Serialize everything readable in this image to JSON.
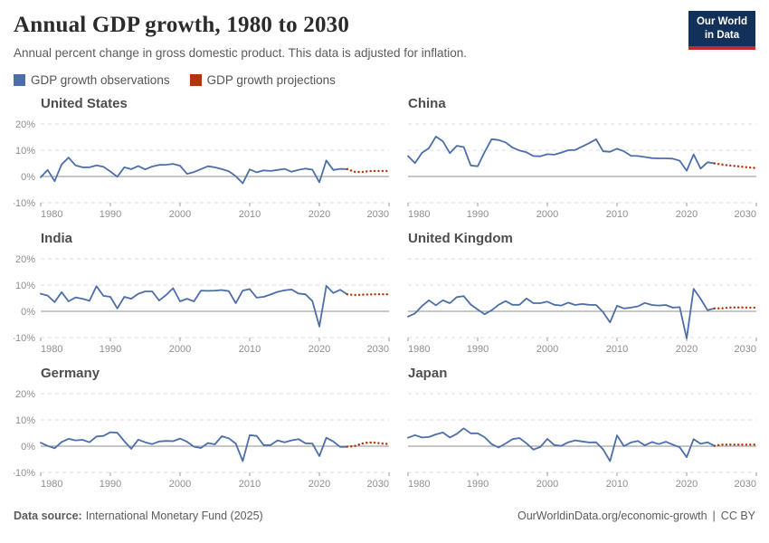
{
  "header": {
    "title": "Annual GDP growth, 1980 to 2030",
    "subtitle": "Annual percent change in gross domestic product. This data is adjusted for inflation.",
    "logo": {
      "line1": "Our World",
      "line2": "in Data"
    }
  },
  "legend": [
    {
      "label": "GDP growth observations",
      "color": "#4C6EA9"
    },
    {
      "label": "GDP growth projections",
      "color": "#B13507"
    }
  ],
  "colors": {
    "observation": "#4C6EA9",
    "projection": "#B13507",
    "grid": "#dcdcdc",
    "axis": "#9a9a9a",
    "zero_line": "#8f8f8f",
    "tick_text": "#8e8e8e",
    "logo_bg": "#12305a",
    "logo_underline": "#c0292e"
  },
  "axes": {
    "xlim": [
      1980,
      2030
    ],
    "ylim": [
      -10,
      20
    ],
    "x_ticks": [
      1980,
      1990,
      2000,
      2010,
      2020,
      2030
    ],
    "y_ticks": [
      {
        "value": 20,
        "label": "20%"
      },
      {
        "value": 10,
        "label": "10%"
      },
      {
        "value": 0,
        "label": "0%"
      },
      {
        "value": -10,
        "label": "-10%"
      }
    ],
    "grid": "dashed horizontal, solid zero line",
    "legend_position": "top"
  },
  "chart_data": [
    {
      "type": "line",
      "country": "United States",
      "years_start": 1980,
      "observations": [
        -0.3,
        2.5,
        -1.8,
        4.6,
        7.2,
        4.2,
        3.5,
        3.5,
        4.2,
        3.7,
        1.9,
        -0.1,
        3.5,
        2.8,
        4.0,
        2.7,
        3.8,
        4.4,
        4.5,
        4.8,
        4.1,
        1.0,
        1.7,
        2.8,
        3.9,
        3.5,
        2.8,
        2.0,
        0.1,
        -2.6,
        2.7,
        1.6,
        2.3,
        2.1,
        2.5,
        2.9,
        1.8,
        2.5,
        3.0,
        2.6,
        -2.2,
        6.1,
        2.5,
        2.9,
        2.8
      ],
      "projection_start_year": 2025,
      "projections": [
        1.8,
        1.7,
        2.0,
        2.1,
        2.1,
        2.1
      ]
    },
    {
      "type": "line",
      "country": "China",
      "years_start": 1980,
      "observations": [
        7.8,
        5.1,
        9.0,
        10.8,
        15.2,
        13.4,
        8.9,
        11.7,
        11.2,
        4.2,
        3.9,
        9.3,
        14.2,
        13.9,
        13.0,
        11.0,
        9.9,
        9.2,
        7.8,
        7.7,
        8.5,
        8.3,
        9.1,
        10.0,
        10.1,
        11.4,
        12.7,
        14.2,
        9.6,
        9.4,
        10.6,
        9.6,
        7.9,
        7.8,
        7.4,
        7.0,
        6.9,
        6.9,
        6.8,
        6.0,
        2.2,
        8.4,
        3.0,
        5.4,
        5.0
      ],
      "projection_start_year": 2025,
      "projections": [
        4.6,
        4.2,
        4.0,
        3.7,
        3.4,
        3.2
      ]
    },
    {
      "type": "line",
      "country": "India",
      "years_start": 1980,
      "observations": [
        6.7,
        6.0,
        3.5,
        7.3,
        3.8,
        5.3,
        4.8,
        4.0,
        9.6,
        5.9,
        5.5,
        1.1,
        5.5,
        4.8,
        6.7,
        7.6,
        7.6,
        4.1,
        6.2,
        8.8,
        3.8,
        4.8,
        3.8,
        7.9,
        7.8,
        7.9,
        8.1,
        7.7,
        3.1,
        7.9,
        8.5,
        5.2,
        5.5,
        6.4,
        7.4,
        8.0,
        8.3,
        6.8,
        6.5,
        3.9,
        -5.8,
        9.7,
        7.0,
        8.2,
        6.5
      ],
      "projection_start_year": 2025,
      "projections": [
        6.2,
        6.3,
        6.4,
        6.5,
        6.5,
        6.5
      ]
    },
    {
      "type": "line",
      "country": "United Kingdom",
      "years_start": 1980,
      "observations": [
        -2.0,
        -0.8,
        2.0,
        4.2,
        2.3,
        4.2,
        3.1,
        5.4,
        5.8,
        2.6,
        0.7,
        -1.1,
        0.4,
        2.5,
        3.9,
        2.5,
        2.5,
        4.9,
        3.1,
        3.1,
        3.7,
        2.5,
        2.2,
        3.3,
        2.4,
        2.8,
        2.5,
        2.4,
        -0.3,
        -4.2,
        2.1,
        1.1,
        1.4,
        1.9,
        3.2,
        2.4,
        2.2,
        2.4,
        1.4,
        1.6,
        -10.3,
        8.6,
        4.8,
        0.4,
        1.1
      ],
      "projection_start_year": 2025,
      "projections": [
        1.1,
        1.4,
        1.5,
        1.5,
        1.4,
        1.4
      ]
    },
    {
      "type": "line",
      "country": "Germany",
      "years_start": 1980,
      "observations": [
        1.3,
        0.1,
        -0.8,
        1.6,
        2.8,
        2.2,
        2.4,
        1.5,
        3.7,
        3.9,
        5.3,
        5.1,
        1.9,
        -1.0,
        2.5,
        1.5,
        0.8,
        1.8,
        2.0,
        1.9,
        2.9,
        1.7,
        -0.2,
        -0.7,
        1.2,
        0.7,
        3.8,
        3.0,
        1.0,
        -5.7,
        4.2,
        3.9,
        0.4,
        0.4,
        2.2,
        1.5,
        2.2,
        2.7,
        1.1,
        1.0,
        -3.8,
        3.2,
        1.8,
        -0.3,
        -0.2
      ],
      "projection_start_year": 2025,
      "projections": [
        0.0,
        0.9,
        1.4,
        1.3,
        1.0,
        0.8
      ]
    },
    {
      "type": "line",
      "country": "Japan",
      "years_start": 1980,
      "observations": [
        3.2,
        4.2,
        3.3,
        3.5,
        4.5,
        5.2,
        3.3,
        4.7,
        6.8,
        4.9,
        4.9,
        3.4,
        0.8,
        -0.5,
        1.0,
        2.7,
        3.1,
        1.1,
        -1.3,
        -0.3,
        2.8,
        0.4,
        0.1,
        1.5,
        2.2,
        1.8,
        1.4,
        1.5,
        -1.2,
        -5.7,
        4.1,
        0.0,
        1.4,
        2.0,
        0.3,
        1.6,
        0.8,
        1.7,
        0.6,
        -0.4,
        -4.2,
        2.7,
        0.9,
        1.5,
        0.1
      ],
      "projection_start_year": 2025,
      "projections": [
        0.6,
        0.6,
        0.6,
        0.6,
        0.6,
        0.6
      ]
    }
  ],
  "footer": {
    "source_label": "Data source:",
    "source_text": "International Monetary Fund (2025)",
    "link": "OurWorldinData.org/economic-growth",
    "separator": "|",
    "license": "CC BY"
  }
}
